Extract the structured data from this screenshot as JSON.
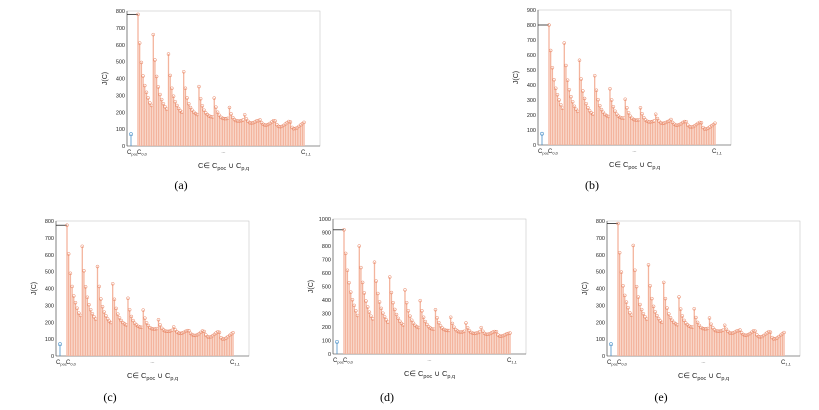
{
  "chart_data": [
    {
      "id": "a",
      "type": "stem",
      "caption": "(a)",
      "ylabel": "J(C)",
      "xlabel": "C∈ C_poc ∪ C_p,q",
      "ylim": [
        0,
        800
      ],
      "yticks": [
        0,
        100,
        200,
        300,
        400,
        500,
        600,
        700,
        800
      ],
      "xtick_labels": {
        "first": "C_poc",
        "second": "C_0,0",
        "middle": "...",
        "last": "C_1,1"
      },
      "poc_value": 70,
      "colors": {
        "poc": "#4a90c8",
        "stem": "#e8805e",
        "bar": "#f7c6b3",
        "ref_line": "#222222"
      },
      "groups": [
        [
          780,
          610,
          495,
          415,
          358,
          318,
          285,
          255,
          240
        ],
        [
          660,
          510,
          412,
          350,
          305,
          275,
          250,
          232,
          218
        ],
        [
          545,
          418,
          342,
          295,
          262,
          240,
          222,
          208,
          200
        ],
        [
          440,
          342,
          285,
          250,
          228,
          212,
          200,
          192,
          186
        ],
        [
          352,
          280,
          238,
          212,
          196,
          186,
          178,
          174,
          172
        ],
        [
          284,
          230,
          200,
          182,
          170,
          164,
          162,
          162,
          164
        ],
        [
          228,
          190,
          168,
          156,
          150,
          148,
          148,
          150,
          154
        ],
        [
          185,
          160,
          146,
          138,
          136,
          138,
          142,
          148,
          150
        ],
        [
          155,
          138,
          128,
          124,
          124,
          128,
          134,
          142,
          150
        ],
        [
          148,
          126,
          116,
          114,
          116,
          122,
          130,
          138,
          145
        ],
        [
          142,
          110,
          102,
          104,
          108,
          116,
          124,
          132,
          140
        ]
      ]
    },
    {
      "id": "b",
      "type": "stem",
      "caption": "(b)",
      "ylabel": "J(C)",
      "xlabel": "C∈ C_poc ∪ C_p,q",
      "ylim": [
        0,
        900
      ],
      "yticks": [
        0,
        100,
        200,
        300,
        400,
        500,
        600,
        700,
        800,
        900
      ],
      "xtick_labels": {
        "first": "C_poc",
        "second": "C_0,0",
        "middle": "...",
        "last": "C_1,1"
      },
      "poc_value": 75,
      "colors": {
        "poc": "#4a90c8",
        "stem": "#e8805e",
        "bar": "#f7c6b3",
        "ref_line": "#222222"
      },
      "groups": [
        [
          800,
          630,
          515,
          435,
          378,
          335,
          300,
          268,
          245
        ],
        [
          680,
          530,
          432,
          368,
          322,
          288,
          258,
          238,
          224
        ],
        [
          565,
          440,
          360,
          310,
          275,
          248,
          228,
          214,
          206
        ],
        [
          462,
          365,
          302,
          262,
          236,
          218,
          204,
          196,
          190
        ],
        [
          375,
          300,
          255,
          225,
          205,
          192,
          184,
          180,
          180
        ],
        [
          305,
          248,
          214,
          192,
          178,
          170,
          166,
          166,
          168
        ],
        [
          248,
          208,
          182,
          166,
          158,
          154,
          154,
          156,
          160
        ],
        [
          205,
          176,
          158,
          148,
          144,
          146,
          150,
          156,
          160
        ],
        [
          170,
          150,
          138,
          132,
          132,
          136,
          142,
          150,
          156
        ],
        [
          155,
          132,
          122,
          120,
          122,
          128,
          136,
          144,
          150
        ],
        [
          148,
          116,
          106,
          108,
          112,
          120,
          128,
          136,
          145
        ]
      ]
    },
    {
      "id": "c",
      "type": "stem",
      "caption": "(c)",
      "ylabel": "J(C)",
      "xlabel": "C∈ C_poc ∪ C_p,q",
      "ylim": [
        0,
        800
      ],
      "yticks": [
        0,
        100,
        200,
        300,
        400,
        500,
        600,
        700,
        800
      ],
      "xtick_labels": {
        "first": "C_poc",
        "second": "C_0,0",
        "middle": "...",
        "last": "C_1,1"
      },
      "poc_value": 70,
      "colors": {
        "poc": "#4a90c8",
        "stem": "#e8805e",
        "bar": "#f7c6b3",
        "ref_line": "#222222"
      },
      "groups": [
        [
          775,
          605,
          490,
          412,
          356,
          316,
          283,
          254,
          240
        ],
        [
          650,
          505,
          410,
          348,
          304,
          274,
          250,
          232,
          218
        ],
        [
          530,
          412,
          338,
          292,
          260,
          238,
          220,
          206,
          198
        ],
        [
          428,
          336,
          282,
          248,
          226,
          210,
          198,
          190,
          184
        ],
        [
          342,
          274,
          234,
          210,
          194,
          184,
          176,
          172,
          170
        ],
        [
          272,
          224,
          196,
          180,
          168,
          162,
          160,
          160,
          162
        ],
        [
          215,
          184,
          164,
          154,
          148,
          146,
          146,
          148,
          152
        ],
        [
          172,
          154,
          142,
          136,
          134,
          136,
          140,
          146,
          150
        ],
        [
          150,
          134,
          126,
          122,
          122,
          126,
          132,
          140,
          148
        ],
        [
          145,
          124,
          114,
          112,
          114,
          120,
          128,
          136,
          143
        ],
        [
          140,
          108,
          100,
          102,
          106,
          114,
          122,
          130,
          138
        ]
      ]
    },
    {
      "id": "d",
      "type": "stem",
      "caption": "(d)",
      "ylabel": "J(C)",
      "xlabel": "C∈ C_poc ∪ C_p,q",
      "ylim": [
        0,
        1000
      ],
      "yticks": [
        0,
        100,
        200,
        300,
        400,
        500,
        600,
        700,
        800,
        900,
        1000
      ],
      "xtick_labels": {
        "first": "C_poc",
        "second": "C_0,0",
        "middle": "...",
        "last": "C_1,1"
      },
      "poc_value": 90,
      "colors": {
        "poc": "#4a90c8",
        "stem": "#e8805e",
        "bar": "#f7c6b3",
        "ref_line": "#222222"
      },
      "groups": [
        [
          920,
          745,
          620,
          528,
          458,
          402,
          360,
          320,
          285
        ],
        [
          800,
          640,
          530,
          452,
          392,
          348,
          310,
          280,
          260
        ],
        [
          680,
          540,
          448,
          385,
          338,
          302,
          275,
          252,
          235
        ],
        [
          570,
          455,
          380,
          330,
          292,
          264,
          242,
          226,
          215
        ],
        [
          475,
          380,
          320,
          280,
          250,
          228,
          212,
          202,
          196
        ],
        [
          395,
          320,
          272,
          240,
          218,
          202,
          192,
          186,
          184
        ],
        [
          328,
          268,
          232,
          208,
          192,
          182,
          176,
          174,
          174
        ],
        [
          272,
          226,
          198,
          180,
          170,
          164,
          162,
          164,
          168
        ],
        [
          230,
          194,
          172,
          160,
          154,
          152,
          154,
          158,
          164
        ],
        [
          195,
          168,
          152,
          146,
          146,
          150,
          156,
          162,
          166
        ],
        [
          165,
          140,
          132,
          132,
          136,
          142,
          148,
          152,
          155
        ]
      ]
    },
    {
      "id": "e",
      "type": "stem",
      "caption": "(e)",
      "ylabel": "J(C)",
      "xlabel": "C∈ C_poc ∪ C_p,q",
      "ylim": [
        0,
        800
      ],
      "yticks": [
        0,
        100,
        200,
        300,
        400,
        500,
        600,
        700,
        800
      ],
      "xtick_labels": {
        "first": "C_poc",
        "second": "C_0,0",
        "middle": "...",
        "last": "C_1,1"
      },
      "poc_value": 70,
      "colors": {
        "poc": "#4a90c8",
        "stem": "#e8805e",
        "bar": "#f7c6b3",
        "ref_line": "#222222"
      },
      "groups": [
        [
          785,
          612,
          497,
          416,
          359,
          319,
          286,
          256,
          241
        ],
        [
          655,
          508,
          411,
          349,
          305,
          275,
          250,
          232,
          218
        ],
        [
          540,
          416,
          340,
          294,
          261,
          239,
          221,
          207,
          199
        ],
        [
          436,
          340,
          284,
          249,
          227,
          211,
          199,
          191,
          185
        ],
        [
          350,
          278,
          237,
          211,
          195,
          185,
          177,
          173,
          171
        ],
        [
          280,
          228,
          199,
          181,
          169,
          163,
          161,
          161,
          163
        ],
        [
          225,
          188,
          167,
          155,
          149,
          147,
          147,
          149,
          153
        ],
        [
          182,
          158,
          145,
          137,
          135,
          137,
          141,
          147,
          150
        ],
        [
          154,
          137,
          127,
          123,
          123,
          127,
          133,
          141,
          149
        ],
        [
          147,
          125,
          115,
          113,
          115,
          121,
          129,
          137,
          144
        ],
        [
          141,
          109,
          101,
          103,
          107,
          115,
          123,
          131,
          139
        ]
      ]
    }
  ]
}
